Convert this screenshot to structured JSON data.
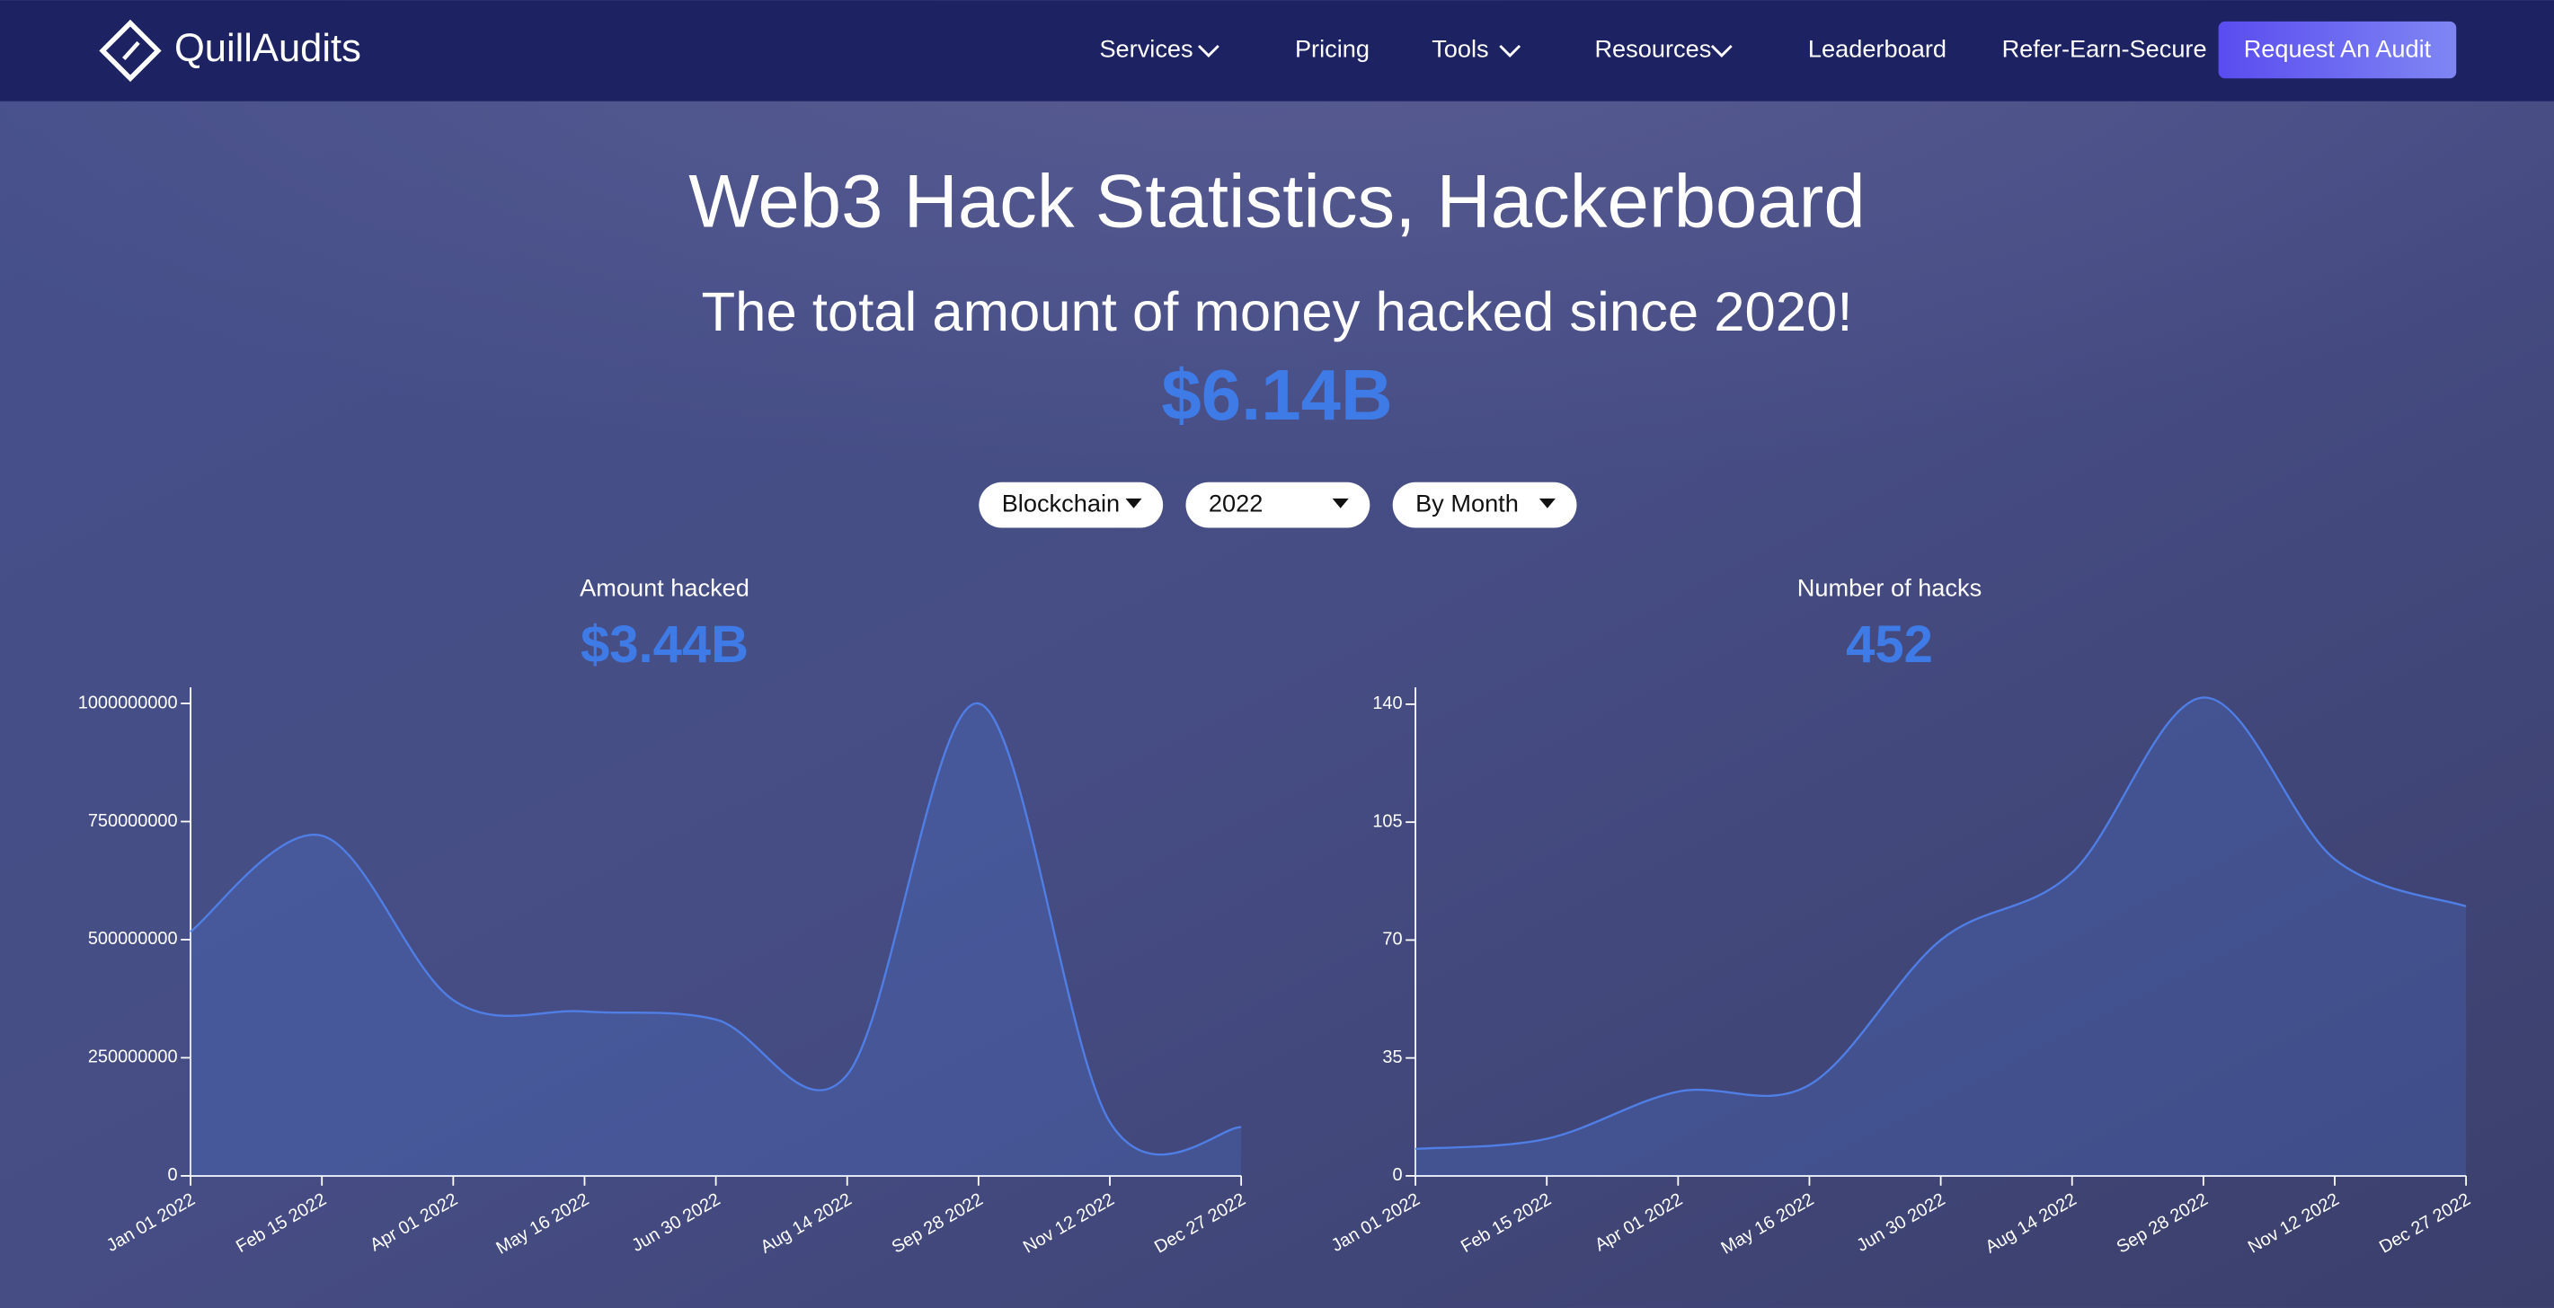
{
  "nav": {
    "logo": "QuillAudits",
    "items": [
      "Services",
      "Pricing",
      "Tools",
      "Resources",
      "Leaderboard",
      "Refer-Earn-Secure"
    ],
    "cta": "Request An Audit"
  },
  "header": {
    "title": "Web3 Hack Statistics, Hackerboard",
    "subtitle": "The total amount of money hacked since 2020!",
    "total": "$6.14B"
  },
  "filters": [
    "Blockchain",
    "2022",
    "By Month"
  ],
  "chart_data": [
    {
      "type": "area",
      "title": "Amount hacked",
      "summary": "$3.44B",
      "categories": [
        "Jan 01 2022",
        "Feb 15 2022",
        "Apr 01 2022",
        "May 16 2022",
        "Jun 30 2022",
        "Aug 14 2022",
        "Sep 28 2022",
        "Nov 12 2022",
        "Dec 27 2022"
      ],
      "values": [
        517000000,
        720000000,
        372000000,
        348000000,
        331000000,
        214000000,
        1000000000,
        114000000,
        103000000
      ],
      "color": "#4f7fe6",
      "ylim": [
        0,
        1034000000
      ],
      "yticks": [
        0,
        250000000,
        500000000,
        750000000,
        1000000000
      ]
    },
    {
      "type": "area",
      "title": "Number of hacks",
      "summary": "452",
      "categories": [
        "Jan 01 2022",
        "Feb 15 2022",
        "Apr 01 2022",
        "May 16 2022",
        "Jun 30 2022",
        "Aug 14 2022",
        "Sep 28 2022",
        "Nov 12 2022",
        "Dec 27 2022"
      ],
      "values": [
        8,
        11,
        25,
        27,
        70,
        90,
        142,
        94,
        80
      ],
      "color": "#4f7fe6",
      "ylim": [
        0,
        145
      ],
      "yticks": [
        0,
        35,
        70,
        105,
        140
      ]
    }
  ]
}
